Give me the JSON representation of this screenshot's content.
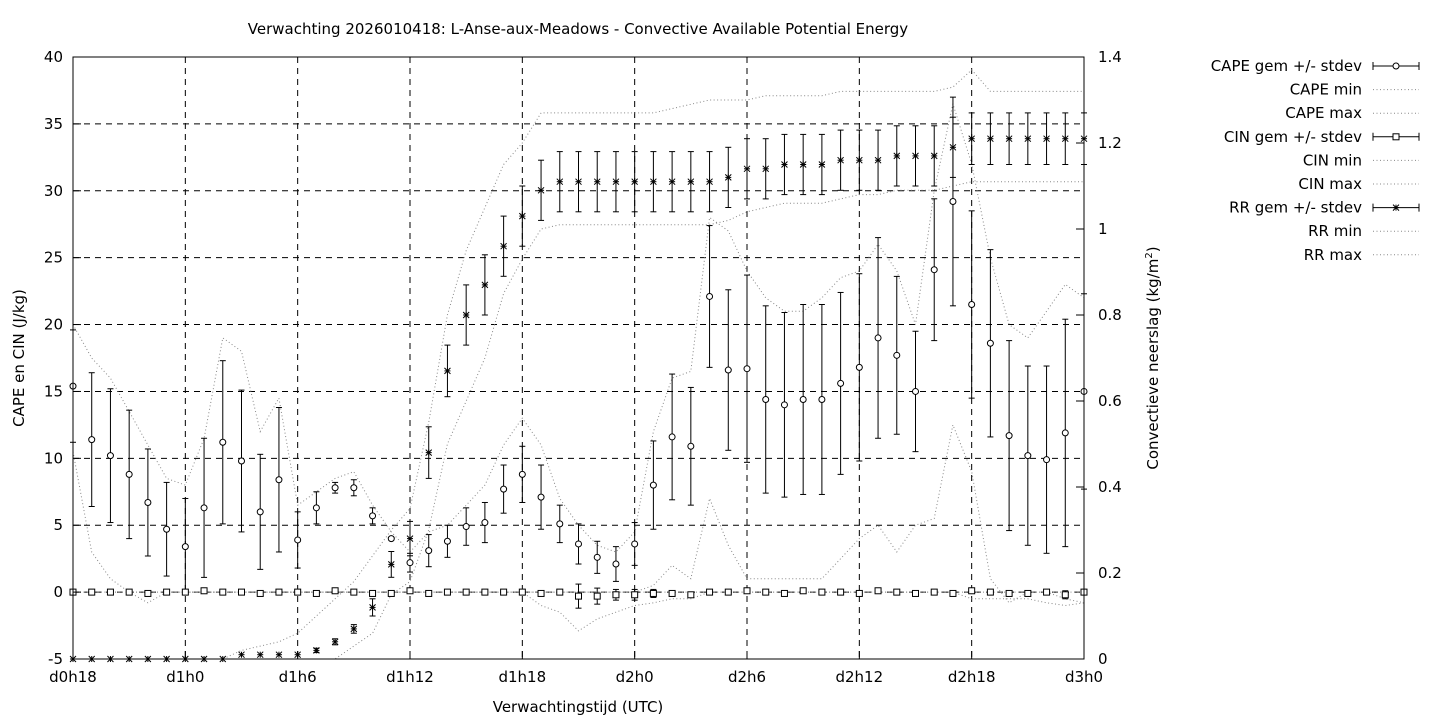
{
  "chart_data": {
    "type": "line",
    "title": "Verwachting 2026010418: L-Anse-aux-Meadows - Convective Available Potential Energy",
    "xlabel": "Verwachtingstijd (UTC)",
    "ylabel": "CAPE en CIN (J/kg)",
    "y2label_main": "Convectieve neerslag (kg/m",
    "y2label_sup": "2",
    "y2label_end": ")",
    "xlim": [
      18,
      72
    ],
    "ylim": [
      -5,
      40
    ],
    "y2lim": [
      0,
      1.4
    ],
    "grid": true,
    "legend_position": "outside-right",
    "x_ticks": [
      {
        "value": 18,
        "label": "d0h18"
      },
      {
        "value": 24,
        "label": "d1h0"
      },
      {
        "value": 30,
        "label": "d1h6"
      },
      {
        "value": 36,
        "label": "d1h12"
      },
      {
        "value": 42,
        "label": "d1h18"
      },
      {
        "value": 48,
        "label": "d2h0"
      },
      {
        "value": 54,
        "label": "d2h6"
      },
      {
        "value": 60,
        "label": "d2h12"
      },
      {
        "value": 66,
        "label": "d2h18"
      },
      {
        "value": 72,
        "label": "d3h0"
      }
    ],
    "y_ticks": [
      -5,
      0,
      5,
      10,
      15,
      20,
      25,
      30,
      35,
      40
    ],
    "y2_ticks": [
      0,
      0.2,
      0.4,
      0.6,
      0.8,
      1,
      1.2,
      1.4
    ],
    "x": [
      18,
      19,
      20,
      21,
      22,
      23,
      24,
      25,
      26,
      27,
      28,
      29,
      30,
      31,
      32,
      33,
      34,
      35,
      36,
      37,
      38,
      39,
      40,
      41,
      42,
      43,
      44,
      45,
      46,
      47,
      48,
      49,
      50,
      51,
      52,
      53,
      54,
      55,
      56,
      57,
      58,
      59,
      60,
      61,
      62,
      63,
      64,
      65,
      66,
      67,
      68,
      69,
      70,
      71,
      72
    ],
    "series": [
      {
        "name": "CAPE gem +/- stdev",
        "axis": "y",
        "style": "errorbar-circle",
        "values": [
          15.4,
          11.4,
          10.2,
          8.8,
          6.7,
          4.7,
          3.4,
          6.3,
          11.2,
          9.8,
          6.0,
          8.4,
          3.9,
          6.3,
          7.8,
          7.8,
          5.7,
          4.0,
          2.2,
          3.1,
          3.8,
          4.9,
          5.2,
          7.7,
          8.8,
          7.1,
          5.1,
          3.6,
          2.6,
          2.1,
          3.6,
          8.0,
          11.6,
          10.9,
          22.1,
          16.6,
          16.7,
          14.4,
          14.0,
          14.4,
          14.4,
          15.6,
          16.8,
          19.0,
          17.7,
          15.0,
          24.1,
          29.2,
          21.5,
          18.6,
          11.7,
          10.2,
          9.9,
          11.9,
          15.0
        ],
        "stdev": [
          4.2,
          5.0,
          5.0,
          4.8,
          4.0,
          3.5,
          3.6,
          5.2,
          6.1,
          5.3,
          4.3,
          5.4,
          2.1,
          1.2,
          0.4,
          0.6,
          0.6,
          0.1,
          0.7,
          1.2,
          1.2,
          1.4,
          1.5,
          1.8,
          2.1,
          2.4,
          1.4,
          1.5,
          1.2,
          1.3,
          1.6,
          3.3,
          4.7,
          4.4,
          5.3,
          6.0,
          7.0,
          7.0,
          6.9,
          7.1,
          7.1,
          6.8,
          7.0,
          7.5,
          5.9,
          4.5,
          5.3,
          7.8,
          7.0,
          7.0,
          7.1,
          6.7,
          7.0,
          8.5,
          7.3
        ]
      },
      {
        "name": "CAPE min",
        "axis": "y",
        "style": "dotted",
        "values": [
          10.5,
          3.0,
          1.0,
          0.0,
          -0.8,
          0.0,
          0.0,
          0.0,
          0.0,
          0.0,
          0.0,
          0.0,
          0.0,
          0.0,
          0.0,
          0.0,
          0.0,
          0.0,
          0.0,
          0.0,
          0.0,
          0.0,
          0.0,
          0.0,
          0.0,
          0.0,
          0.0,
          0.0,
          0.0,
          0.0,
          0.0,
          0.5,
          2.0,
          1.0,
          7.0,
          3.5,
          1.0,
          1.0,
          1.0,
          1.0,
          1.0,
          2.5,
          4.0,
          5.0,
          3.0,
          5.0,
          5.5,
          12.5,
          9.0,
          1.0,
          -0.8,
          0.0,
          0.0,
          -0.5,
          -0.8
        ]
      },
      {
        "name": "CAPE max",
        "axis": "y",
        "style": "dotted",
        "values": [
          20.0,
          17.5,
          16.0,
          13.5,
          11.0,
          8.5,
          8.0,
          11.5,
          19.0,
          18.0,
          12.0,
          14.5,
          6.5,
          7.5,
          8.5,
          9.0,
          6.5,
          4.5,
          3.0,
          4.5,
          5.0,
          6.5,
          8.0,
          11.0,
          13.0,
          11.0,
          7.0,
          5.0,
          3.5,
          3.0,
          4.5,
          12.0,
          16.0,
          16.5,
          28.0,
          27.0,
          24.0,
          22.0,
          21.0,
          21.0,
          22.0,
          23.5,
          24.0,
          26.0,
          24.0,
          20.0,
          30.0,
          36.5,
          32.0,
          25.0,
          20.0,
          19.0,
          21.0,
          23.0,
          22.0
        ]
      },
      {
        "name": "CIN gem +/- stdev",
        "axis": "y",
        "style": "errorbar-square",
        "values": [
          0,
          0,
          0,
          0,
          -0.1,
          0,
          0,
          0.1,
          0,
          0,
          -0.1,
          0,
          0,
          -0.1,
          0.1,
          0,
          -0.1,
          -0.1,
          0.1,
          -0.1,
          0,
          0,
          0,
          0,
          0,
          -0.1,
          0,
          -0.3,
          -0.3,
          -0.2,
          -0.2,
          -0.1,
          -0.1,
          -0.2,
          0,
          0,
          0.1,
          0,
          -0.1,
          0.1,
          0,
          0,
          -0.1,
          0.1,
          0,
          -0.1,
          0,
          -0.1,
          0.1,
          0,
          -0.1,
          -0.1,
          0,
          -0.2,
          0
        ],
        "stdev": [
          0,
          0,
          0,
          0,
          0.1,
          0,
          0,
          0.1,
          0,
          0,
          0.1,
          0,
          0,
          0.1,
          0.1,
          0,
          0.1,
          0.1,
          0.1,
          0.1,
          0,
          0,
          0,
          0,
          0,
          0.1,
          0.1,
          0.9,
          0.6,
          0.4,
          0.4,
          0.3,
          0.2,
          0.2,
          0,
          0,
          0.1,
          0,
          0.1,
          0.1,
          0,
          0,
          0.1,
          0.1,
          0,
          0.1,
          0,
          0.1,
          0.1,
          0,
          0.1,
          0.1,
          0,
          0.3,
          0
        ]
      },
      {
        "name": "CIN min",
        "axis": "y",
        "style": "dotted",
        "values": [
          0,
          0,
          0,
          0,
          0,
          0,
          0,
          0,
          0,
          0,
          0,
          0,
          0,
          0,
          0,
          0,
          0,
          0,
          0,
          0,
          0,
          0,
          0,
          0,
          0,
          -1.0,
          -1.5,
          -2.9,
          -2.0,
          -1.5,
          -1.0,
          -0.8,
          -0.5,
          -0.5,
          0,
          0,
          0,
          0,
          0,
          0,
          0,
          0,
          0,
          0,
          0,
          0,
          0,
          0,
          -0.5,
          -0.5,
          -0.5,
          -0.5,
          -0.8,
          -1.0,
          -0.8
        ]
      },
      {
        "name": "CIN max",
        "axis": "y",
        "style": "dotted",
        "values": [
          0,
          0,
          0,
          0,
          0,
          0,
          0,
          0,
          0,
          0,
          0,
          0,
          0,
          0,
          0,
          0,
          0,
          0,
          0,
          0,
          0,
          0,
          0,
          0,
          0,
          0,
          0,
          0,
          0,
          0,
          0,
          0,
          0,
          0,
          0,
          0,
          0,
          0,
          0,
          0,
          0,
          0,
          0,
          0,
          0,
          0,
          0,
          0,
          0,
          0,
          0,
          0,
          0,
          0,
          0
        ]
      },
      {
        "name": "RR gem +/- stdev",
        "axis": "y2",
        "style": "errorbar-star",
        "values": [
          0,
          0,
          0,
          0,
          0,
          0,
          0,
          0,
          0,
          0.01,
          0.01,
          0.01,
          0.01,
          0.02,
          0.04,
          0.07,
          0.12,
          0.22,
          0.28,
          0.48,
          0.67,
          0.8,
          0.87,
          0.96,
          1.03,
          1.09,
          1.11,
          1.11,
          1.11,
          1.11,
          1.11,
          1.11,
          1.11,
          1.11,
          1.11,
          1.12,
          1.14,
          1.14,
          1.15,
          1.15,
          1.15,
          1.16,
          1.16,
          1.16,
          1.17,
          1.17,
          1.17,
          1.19,
          1.21,
          1.21,
          1.21,
          1.21,
          1.21,
          1.21,
          1.21
        ],
        "stdev": [
          0,
          0,
          0,
          0,
          0,
          0,
          0,
          0,
          0,
          0,
          0,
          0,
          0,
          0.005,
          0.007,
          0.01,
          0.02,
          0.03,
          0.04,
          0.06,
          0.06,
          0.07,
          0.07,
          0.07,
          0.07,
          0.07,
          0.07,
          0.07,
          0.07,
          0.07,
          0.07,
          0.07,
          0.07,
          0.07,
          0.07,
          0.07,
          0.07,
          0.07,
          0.07,
          0.07,
          0.07,
          0.07,
          0.07,
          0.07,
          0.07,
          0.07,
          0.07,
          0.07,
          0.06,
          0.06,
          0.06,
          0.06,
          0.06,
          0.06,
          0.06
        ]
      },
      {
        "name": "RR min",
        "axis": "y2",
        "style": "dotted",
        "values": [
          0,
          0,
          0,
          0,
          0,
          0,
          0,
          0,
          0,
          0,
          0,
          0,
          0,
          0,
          0,
          0.03,
          0.06,
          0.15,
          0.18,
          0.3,
          0.5,
          0.6,
          0.7,
          0.85,
          0.93,
          1.0,
          1.01,
          1.01,
          1.01,
          1.01,
          1.01,
          1.01,
          1.01,
          1.01,
          1.01,
          1.02,
          1.04,
          1.05,
          1.06,
          1.06,
          1.06,
          1.07,
          1.08,
          1.08,
          1.09,
          1.09,
          1.09,
          1.1,
          1.11,
          1.11,
          1.11,
          1.11,
          1.11,
          1.11,
          1.11
        ]
      },
      {
        "name": "RR max",
        "axis": "y2",
        "style": "dotted",
        "values": [
          0,
          0,
          0,
          0,
          0,
          0,
          0,
          0,
          0,
          0.02,
          0.03,
          0.04,
          0.06,
          0.1,
          0.14,
          0.18,
          0.24,
          0.3,
          0.35,
          0.55,
          0.8,
          0.95,
          1.05,
          1.15,
          1.2,
          1.27,
          1.27,
          1.27,
          1.27,
          1.27,
          1.27,
          1.27,
          1.28,
          1.29,
          1.3,
          1.3,
          1.3,
          1.31,
          1.31,
          1.31,
          1.31,
          1.32,
          1.32,
          1.32,
          1.32,
          1.32,
          1.32,
          1.33,
          1.37,
          1.32,
          1.32,
          1.32,
          1.32,
          1.32,
          1.32
        ]
      }
    ]
  }
}
